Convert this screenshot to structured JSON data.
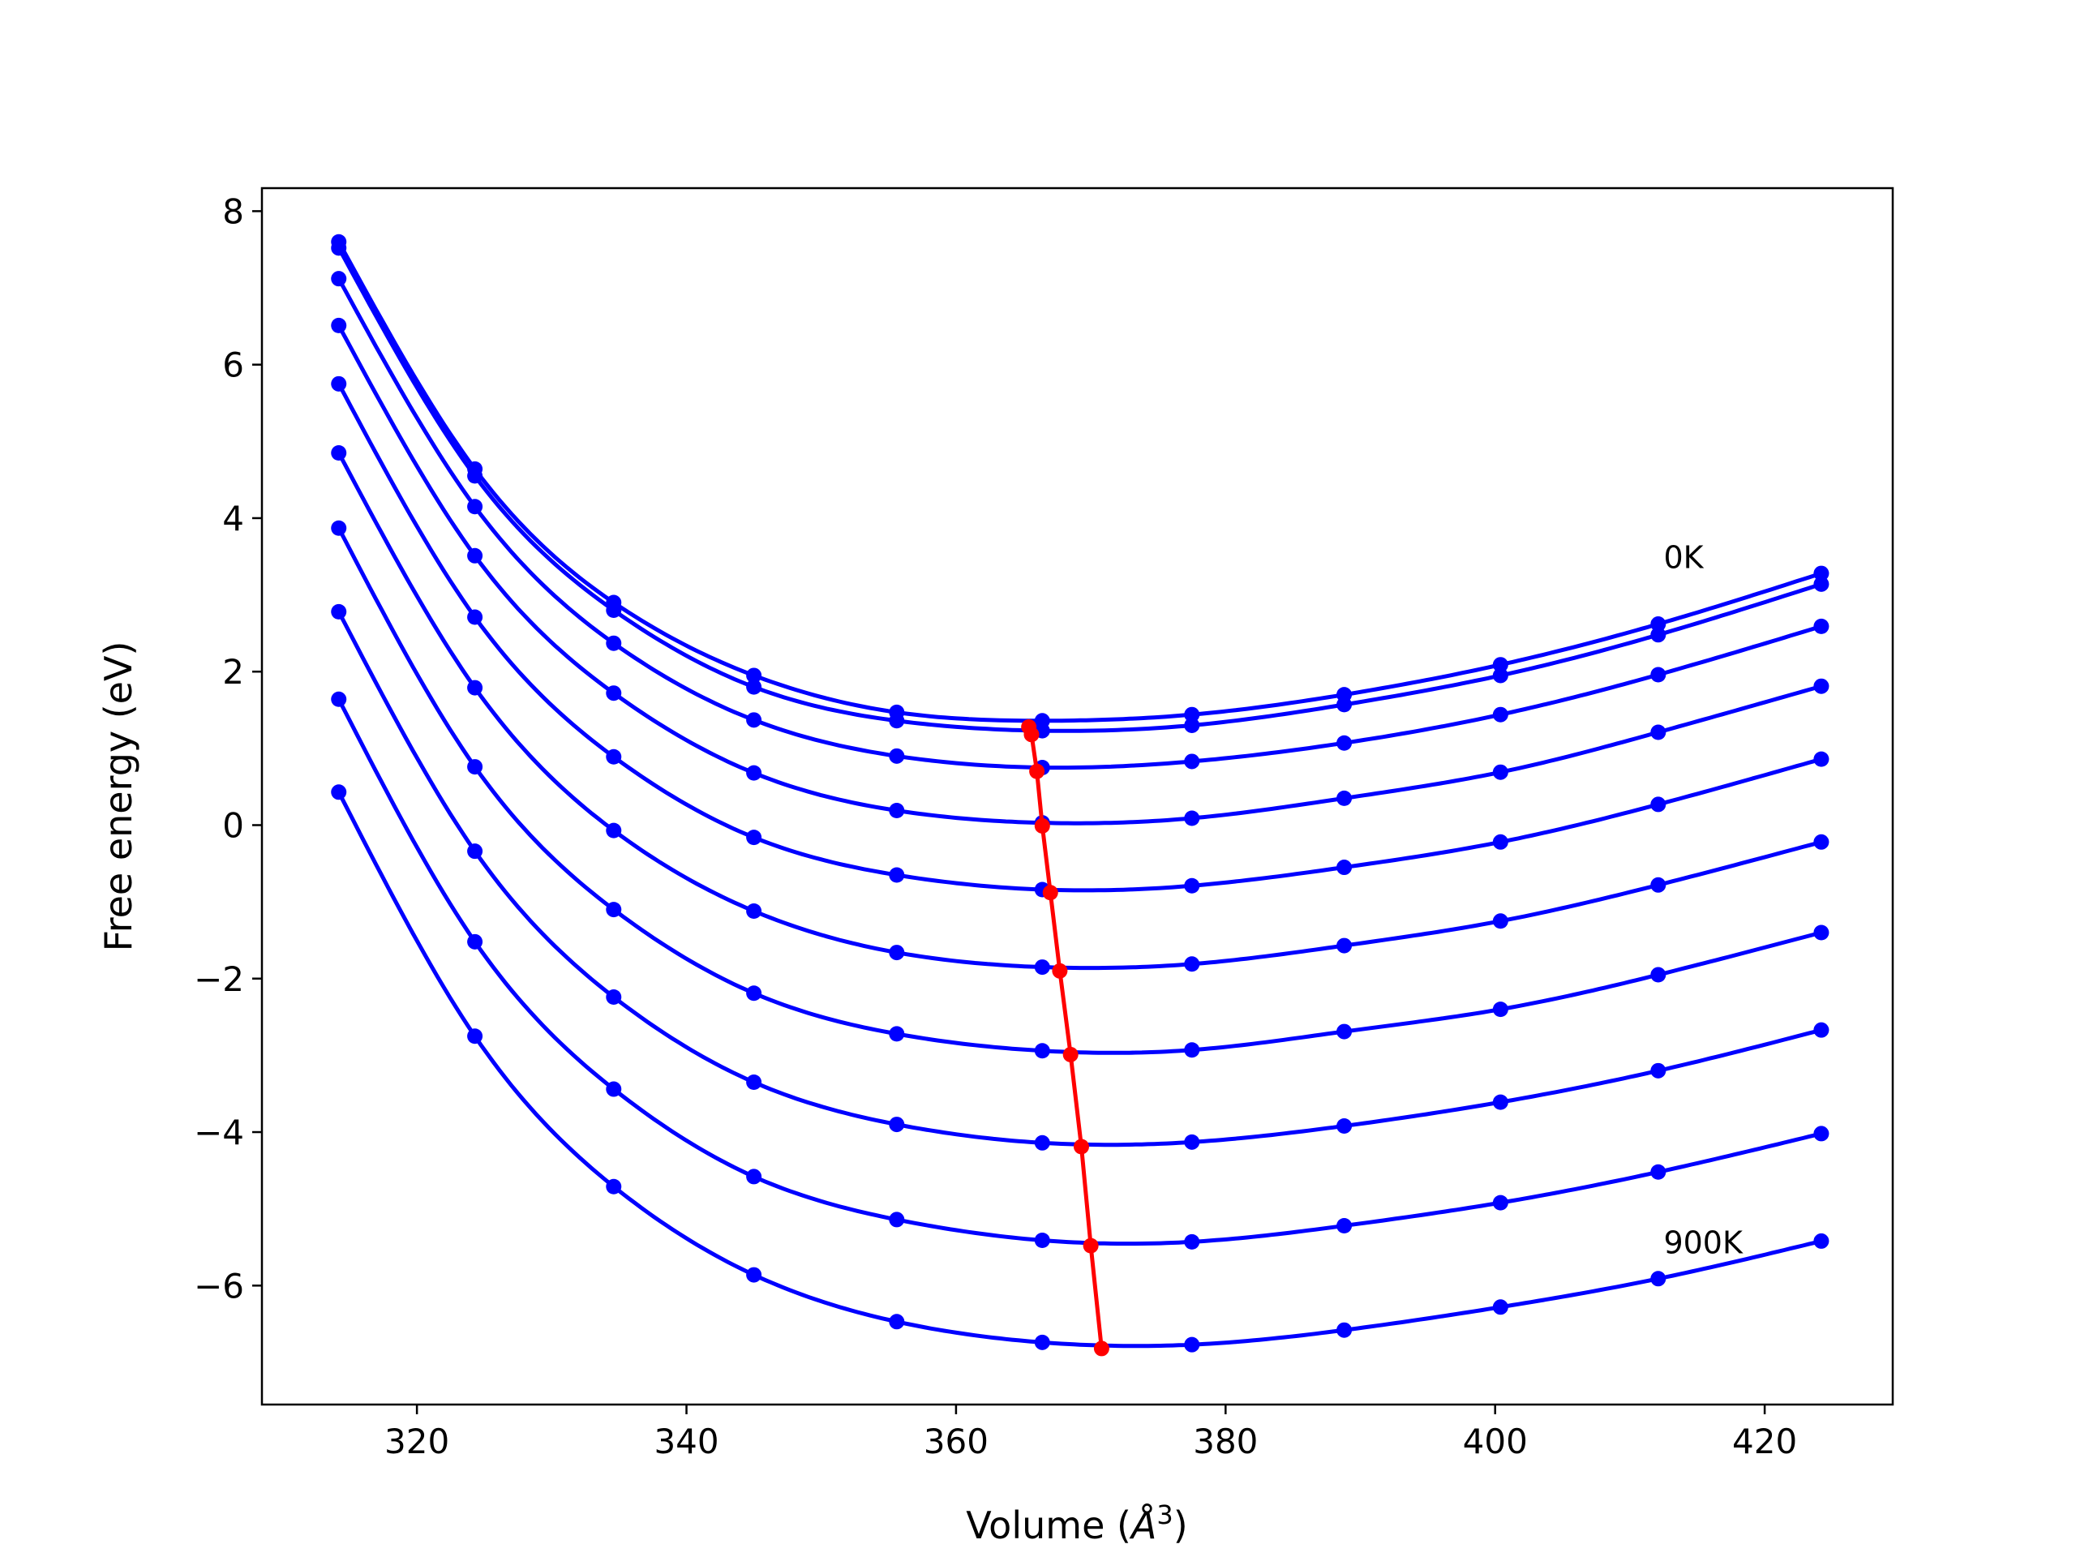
{
  "chart_data": {
    "type": "line",
    "xlabel_main": "Volume (",
    "xlabel_unit": "Å",
    "xlabel_exp": "3",
    "xlabel_close": ")",
    "ylabel": "Free energy (eV)",
    "xlim": [
      308.5,
      429.5
    ],
    "ylim": [
      -7.55,
      8.3
    ],
    "xticks": [
      320,
      340,
      360,
      380,
      400,
      420
    ],
    "yticks": [
      -6,
      -4,
      -2,
      0,
      2,
      4,
      6,
      8
    ],
    "grid": false,
    "annotations": [
      {
        "text": "0K",
        "x": 412.5,
        "y": 3.35
      },
      {
        "text": "900K",
        "x": 412.5,
        "y": -5.58
      }
    ],
    "curve_color": "#0000ff",
    "min_line_color": "#ff0000",
    "volumes": [
      314.2,
      324.3,
      334.6,
      345.0,
      355.6,
      366.4,
      377.5,
      388.8,
      400.4,
      412.1,
      424.2
    ],
    "series": [
      {
        "values": [
          7.6,
          4.64,
          2.9,
          1.95,
          1.47,
          1.36,
          1.44,
          1.7,
          2.09,
          2.62,
          3.28
        ]
      },
      {
        "values": [
          7.52,
          4.55,
          2.8,
          1.8,
          1.36,
          1.23,
          1.3,
          1.57,
          1.95,
          2.48,
          3.14
        ]
      },
      {
        "values": [
          7.12,
          4.15,
          2.37,
          1.37,
          0.9,
          0.75,
          0.83,
          1.07,
          1.44,
          1.96,
          2.59
        ]
      },
      {
        "values": [
          6.51,
          3.51,
          1.72,
          0.68,
          0.19,
          0.03,
          0.09,
          0.35,
          0.69,
          1.21,
          1.81
        ]
      },
      {
        "values": [
          5.75,
          2.71,
          0.89,
          -0.16,
          -0.65,
          -0.84,
          -0.79,
          -0.55,
          -0.22,
          0.27,
          0.86
        ]
      },
      {
        "values": [
          4.85,
          1.79,
          -0.07,
          -1.12,
          -1.66,
          -1.85,
          -1.81,
          -1.57,
          -1.25,
          -0.78,
          -0.22
        ]
      },
      {
        "values": [
          3.87,
          0.76,
          -1.1,
          -2.19,
          -2.72,
          -2.94,
          -2.93,
          -2.69,
          -2.4,
          -1.95,
          -1.4
        ]
      },
      {
        "values": [
          2.78,
          -0.34,
          -2.24,
          -3.35,
          -3.9,
          -4.14,
          -4.13,
          -3.92,
          -3.61,
          -3.2,
          -2.67
        ]
      },
      {
        "values": [
          1.64,
          -1.52,
          -3.44,
          -4.58,
          -5.14,
          -5.41,
          -5.43,
          -5.22,
          -4.92,
          -4.52,
          -4.02
        ]
      },
      {
        "values": [
          0.43,
          -2.75,
          -4.71,
          -5.86,
          -6.47,
          -6.74,
          -6.77,
          -6.58,
          -6.28,
          -5.91,
          -5.42
        ]
      }
    ],
    "minima": {
      "x": [
        365.4,
        365.6,
        366.0,
        366.4,
        367.0,
        367.7,
        368.5,
        369.3,
        370.0,
        370.8
      ],
      "y": [
        1.28,
        1.18,
        0.7,
        -0.01,
        -0.88,
        -1.9,
        -2.99,
        -4.19,
        -5.48,
        -6.82
      ]
    }
  }
}
